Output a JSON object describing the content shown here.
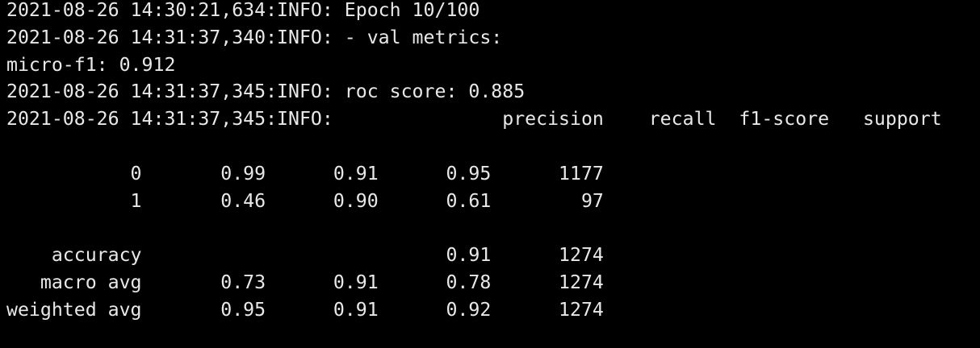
{
  "lines": [
    "2021-08-26 14:30:21,634:INFO: Epoch 10/100",
    "2021-08-26 14:31:37,340:INFO: - val metrics:",
    "micro-f1: 0.912",
    "2021-08-26 14:31:37,345:INFO: roc score: 0.885",
    "2021-08-26 14:31:37,345:INFO:               precision    recall  f1-score   support",
    "           0       0.99      0.91      0.95      1177",
    "           1       0.46      0.90      0.61        97",
    "    accuracy                           0.91      1274",
    "   macro avg       0.73      0.91      0.78      1274",
    "weighted avg       0.95      0.91      0.92      1274"
  ]
}
